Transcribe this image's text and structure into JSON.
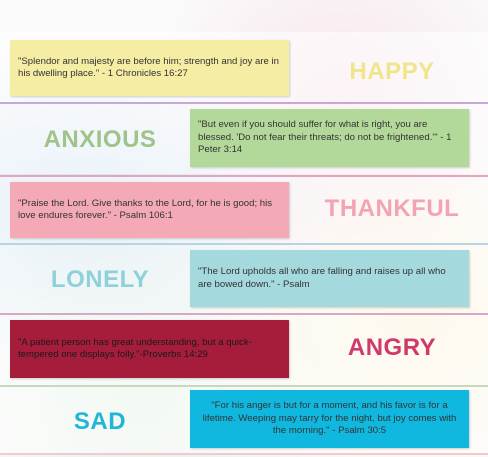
{
  "rows": [
    {
      "emotion": "HAPPY",
      "quote": "\"Splendor and majesty are before him; strength and joy are in his dwelling place.\" - 1 Chronicles 16:27",
      "box_color": "#f5eda3",
      "emotion_color": "#efe58a",
      "separator_color": "#c8a8d8"
    },
    {
      "emotion": "ANXIOUS",
      "quote": "\"But even if you should suffer for what is right, you are blessed. 'Do not fear their threats; do not be frightened.'\" - 1 Peter 3:14",
      "box_color": "#b3d99a",
      "emotion_color": "#9fc389",
      "separator_color": "#e2a6c2"
    },
    {
      "emotion": "THANKFUL",
      "quote": "\"Praise the Lord. Give thanks to the Lord, for he is good; his love endures forever.\" - Psalm 106:1",
      "box_color": "#f3a9b6",
      "emotion_color": "#f3a4b2",
      "separator_color": "#b8d3e8"
    },
    {
      "emotion": "LONELY",
      "quote": "\"The Lord upholds all who are falling and raises up all who are bowed down.\" - Psalm",
      "box_color": "#a4d9dd",
      "emotion_color": "#8fd0da",
      "separator_color": "#d8a8c8"
    },
    {
      "emotion": "ANGRY",
      "quote": "\"A patient person has great understanding, but a quick-tempered one displays folly.\"-Proverbs 14:29",
      "box_color": "#a51d3a",
      "emotion_color": "#cf3a6c",
      "separator_color": "#c8d8c0"
    },
    {
      "emotion": "SAD",
      "quote": "\"For his anger is but for a moment, and his favor is for a lifetime. Weeping may tarry for the night, but joy comes with the morning.\" - Psalm 30:5",
      "box_color": "#10b8e0",
      "emotion_color": "#20b6d8",
      "separator_color": "#f0c8d8"
    }
  ]
}
